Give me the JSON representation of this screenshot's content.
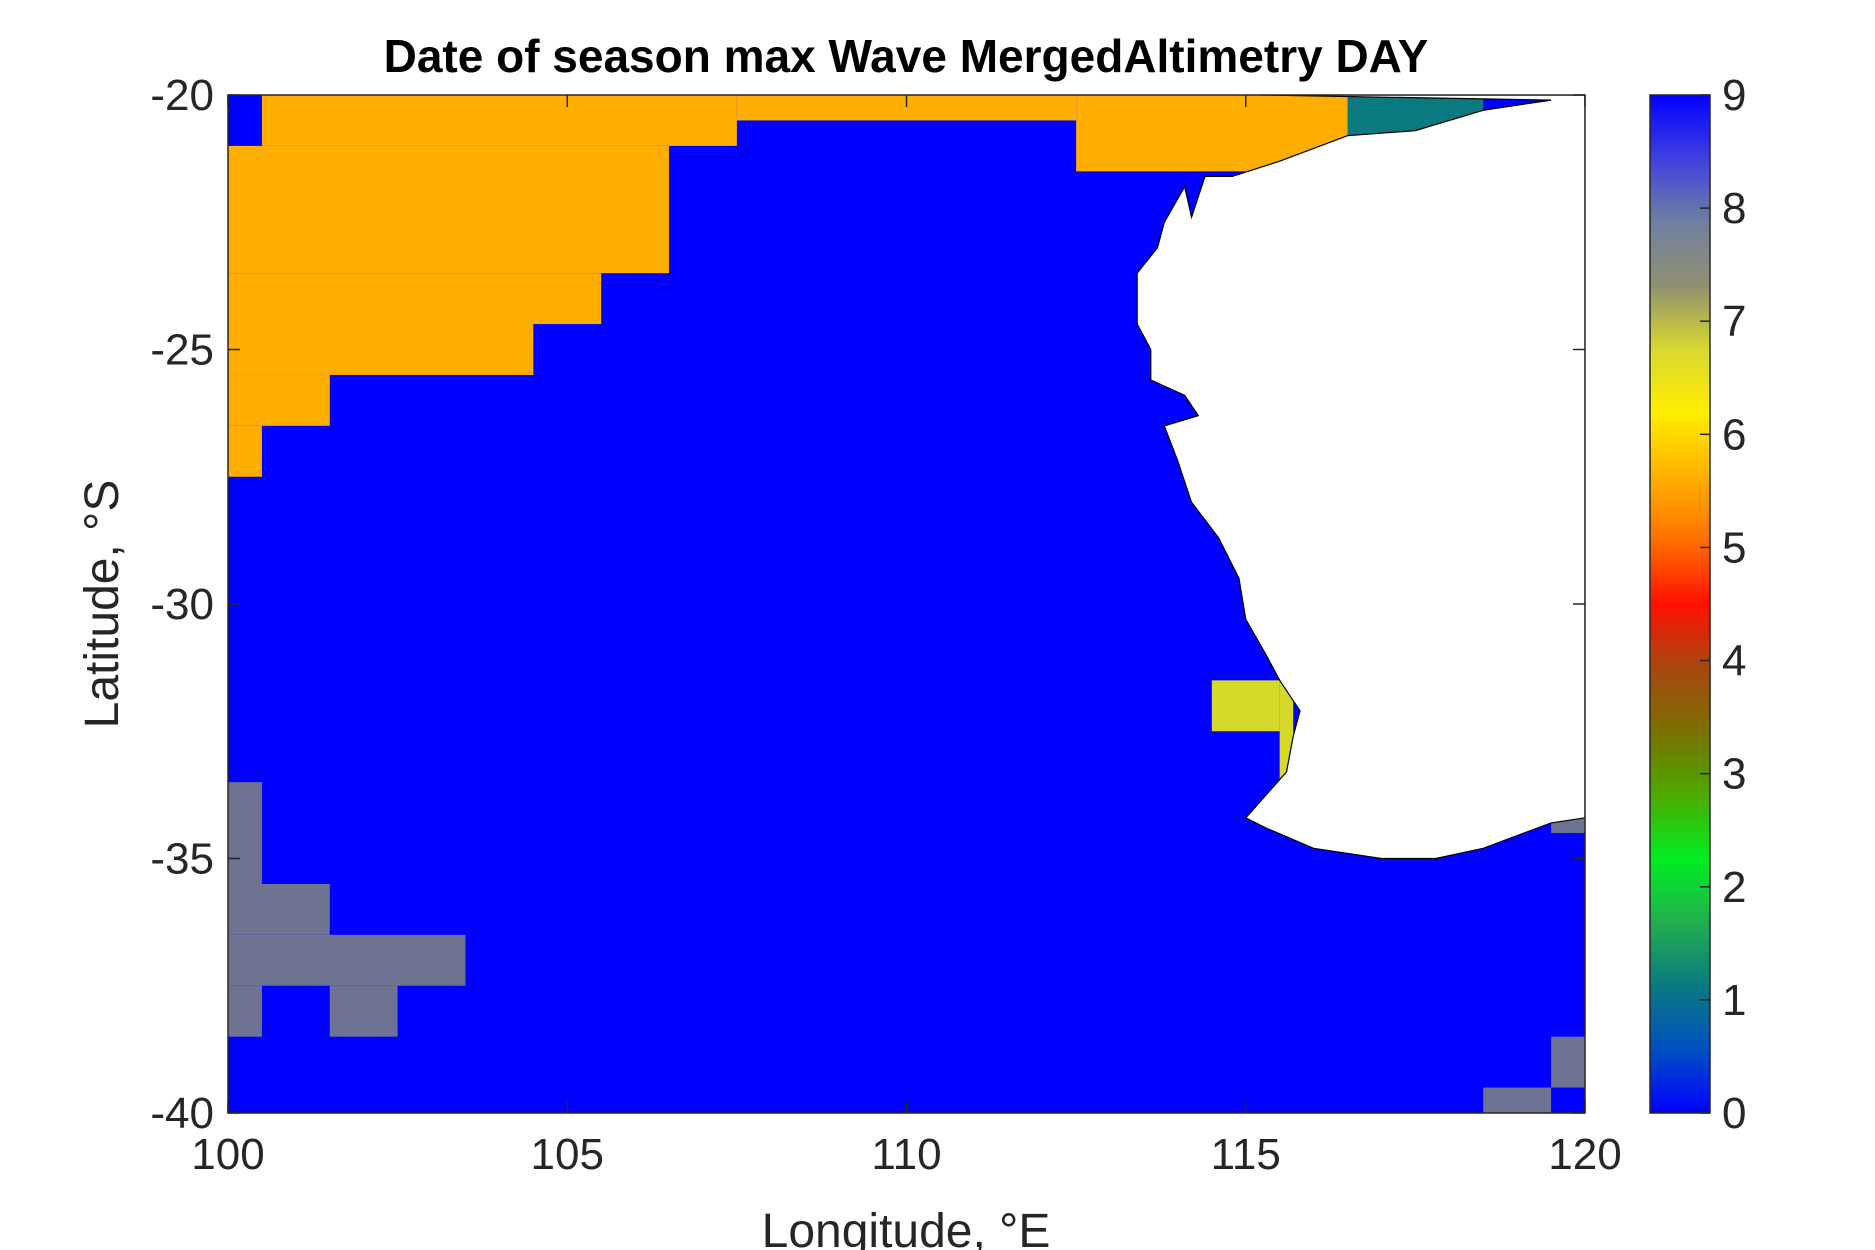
{
  "chart_data": {
    "type": "heatmap",
    "title": "Date of season max Wave MergedAltimetry DAY",
    "xlabel": "Longitude, °E",
    "ylabel": "Latitude, °S",
    "xlim": [
      100,
      120
    ],
    "ylim": [
      -40,
      -20
    ],
    "xticks": [
      100,
      105,
      110,
      115,
      120
    ],
    "yticks": [
      -20,
      -25,
      -30,
      -35,
      -40
    ],
    "x_tick_labels": [
      "100",
      "105",
      "110",
      "115",
      "120"
    ],
    "y_tick_labels": [
      "-20",
      "-25",
      "-30",
      "-35",
      "-40"
    ],
    "colorbar": {
      "range": [
        0,
        9
      ],
      "ticks": [
        "0",
        "1",
        "2",
        "3",
        "4",
        "5",
        "6",
        "7",
        "8",
        "9"
      ],
      "colormap": [
        "#0000ff",
        "#0050c0",
        "#0a7a80",
        "#22b050",
        "#00ee20",
        "#4caa00",
        "#7a7000",
        "#a84810",
        "#ff1000",
        "#ff7000",
        "#ffb000",
        "#ffee00",
        "#d8d830",
        "#909070",
        "#7080a0",
        "#4040e0",
        "#0000ff"
      ]
    },
    "cell_size_deg": 1,
    "background_value": 9,
    "colors": {
      "value_9": "#0000ff",
      "value_6": "#ffae00",
      "value_8": "#6e7391",
      "value_7": "#d4d92a",
      "value_1": "#0a7a80",
      "land": "#ffffff"
    },
    "regions": [
      {
        "value": 6,
        "lon": [
          100.5,
          107.5
        ],
        "lat": [
          -21,
          -20
        ]
      },
      {
        "value": 6,
        "lon": [
          107.5,
          112.5
        ],
        "lat": [
          -20.5,
          -20
        ]
      },
      {
        "value": 6,
        "lon": [
          112.5,
          117.5
        ],
        "lat": [
          -21.5,
          -20
        ]
      },
      {
        "value": 1,
        "lon": [
          116.5,
          118.5
        ],
        "lat": [
          -20.8,
          -20
        ]
      },
      {
        "value": 6,
        "lon": [
          100,
          106.5
        ],
        "lat": [
          -23.5,
          -21
        ]
      },
      {
        "value": 6,
        "lon": [
          100,
          105.5
        ],
        "lat": [
          -24.5,
          -23.5
        ]
      },
      {
        "value": 6,
        "lon": [
          100,
          104.5
        ],
        "lat": [
          -25.5,
          -24.5
        ]
      },
      {
        "value": 6,
        "lon": [
          100,
          101.5
        ],
        "lat": [
          -26.5,
          -25.5
        ]
      },
      {
        "value": 6,
        "lon": [
          100,
          100.5
        ],
        "lat": [
          -27.5,
          -26.5
        ]
      },
      {
        "value": 7,
        "lon": [
          114.5,
          115.5
        ],
        "lat": [
          -32.5,
          -31.5
        ]
      },
      {
        "value": 7,
        "lon": [
          115.5,
          115.7
        ],
        "lat": [
          -33.5,
          -31.5
        ]
      },
      {
        "value": 8,
        "lon": [
          100,
          100.5
        ],
        "lat": [
          -35.5,
          -33.5
        ]
      },
      {
        "value": 8,
        "lon": [
          100,
          101.5
        ],
        "lat": [
          -36.5,
          -35.5
        ]
      },
      {
        "value": 8,
        "lon": [
          100,
          103.5
        ],
        "lat": [
          -37.5,
          -36.5
        ]
      },
      {
        "value": 8,
        "lon": [
          100,
          100.5
        ],
        "lat": [
          -38.5,
          -37.5
        ]
      },
      {
        "value": 8,
        "lon": [
          101.5,
          102.5
        ],
        "lat": [
          -38.5,
          -37.5
        ]
      },
      {
        "value": 8,
        "lon": [
          119.5,
          120
        ],
        "lat": [
          -34.5,
          -34
        ]
      },
      {
        "value": 8,
        "lon": [
          119.5,
          120
        ],
        "lat": [
          -39.5,
          -38.5
        ]
      },
      {
        "value": 8,
        "lon": [
          118.5,
          119.5
        ],
        "lat": [
          -40,
          -39.5
        ]
      }
    ],
    "land_outline": [
      [
        115.2,
        -20
      ],
      [
        120,
        -20
      ],
      [
        120,
        -34.2
      ],
      [
        119.5,
        -34.3
      ],
      [
        118.5,
        -34.8
      ],
      [
        117.8,
        -35.0
      ],
      [
        117.0,
        -35.0
      ],
      [
        116.0,
        -34.8
      ],
      [
        115.3,
        -34.4
      ],
      [
        115.0,
        -34.2
      ],
      [
        115.4,
        -33.6
      ],
      [
        115.6,
        -33.3
      ],
      [
        115.7,
        -32.6
      ],
      [
        115.8,
        -32.1
      ],
      [
        115.5,
        -31.5
      ],
      [
        115.3,
        -31.0
      ],
      [
        115.0,
        -30.3
      ],
      [
        114.9,
        -29.5
      ],
      [
        114.6,
        -28.7
      ],
      [
        114.2,
        -28.0
      ],
      [
        114.0,
        -27.2
      ],
      [
        113.8,
        -26.5
      ],
      [
        114.3,
        -26.3
      ],
      [
        114.1,
        -25.9
      ],
      [
        113.6,
        -25.6
      ],
      [
        113.6,
        -25.0
      ],
      [
        113.4,
        -24.5
      ],
      [
        113.4,
        -23.5
      ],
      [
        113.7,
        -23.0
      ],
      [
        113.8,
        -22.5
      ],
      [
        114.1,
        -21.8
      ],
      [
        114.2,
        -22.4
      ],
      [
        114.4,
        -21.6
      ],
      [
        114.8,
        -21.6
      ],
      [
        115.5,
        -21.3
      ],
      [
        116.5,
        -20.8
      ],
      [
        117.5,
        -20.7
      ],
      [
        118.5,
        -20.3
      ],
      [
        119.5,
        -20.1
      ]
    ]
  }
}
